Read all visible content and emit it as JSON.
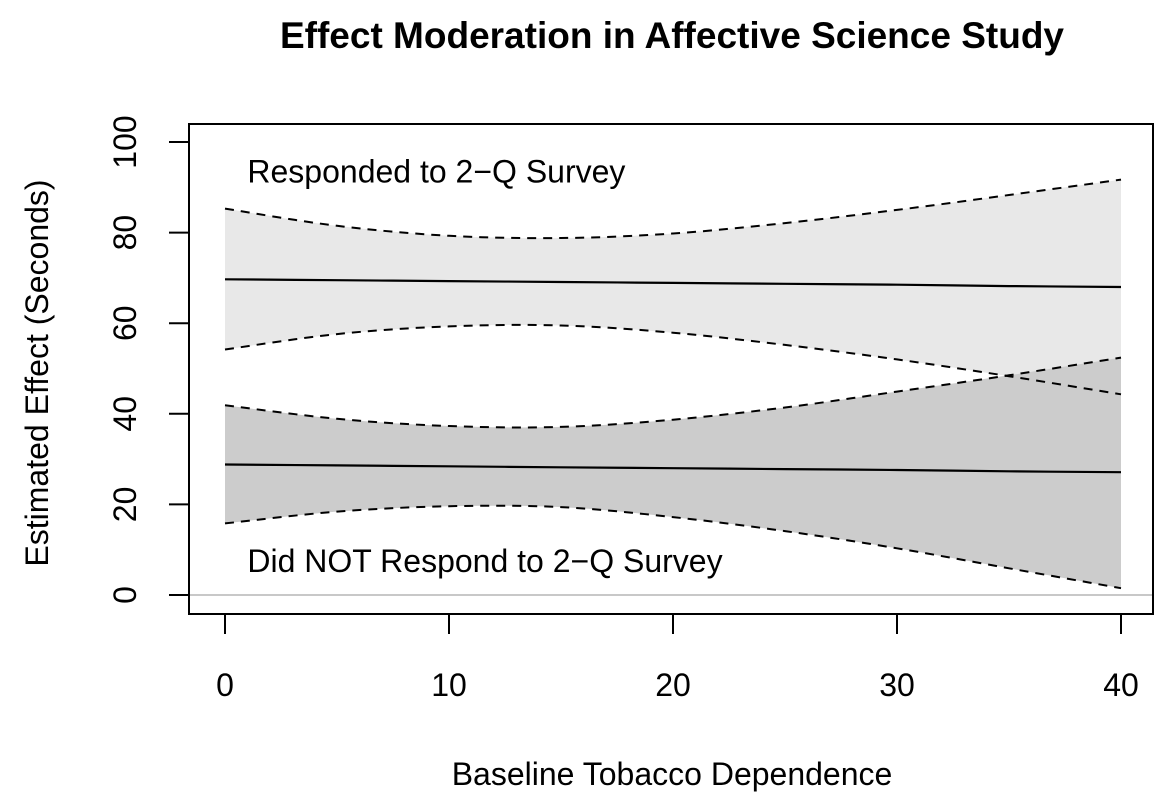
{
  "chart_data": {
    "type": "line",
    "title": "Effect Moderation in Affective Science Study",
    "xlabel": "Baseline Tobacco Dependence",
    "ylabel": "Estimated Effect (Seconds)",
    "xlim": [
      0,
      40
    ],
    "ylim": [
      0,
      100
    ],
    "x_ticks": [
      0,
      10,
      20,
      30,
      40
    ],
    "y_ticks": [
      0,
      20,
      40,
      60,
      80,
      100
    ],
    "reference_line_y": 0,
    "colors": {
      "upper_band": "#e8e8e8",
      "lower_band": "#cccccc",
      "line": "#000000",
      "zero_line": "#c8c8c8"
    },
    "x": [
      0,
      5,
      10,
      15,
      20,
      25,
      30,
      35,
      40
    ],
    "series": [
      {
        "name": "Responded to 2−Q Survey",
        "estimate": [
          69.7,
          69.5,
          69.3,
          69.1,
          68.9,
          68.7,
          68.5,
          68.2,
          68.0
        ],
        "upper": [
          85.3,
          81.5,
          79.3,
          78.8,
          79.8,
          82.1,
          85.0,
          88.3,
          91.7
        ],
        "lower": [
          54.2,
          57.6,
          59.3,
          59.5,
          57.9,
          55.2,
          52.0,
          48.3,
          44.3
        ]
      },
      {
        "name": "Did NOT Respond to 2−Q Survey",
        "estimate": [
          28.8,
          28.6,
          28.4,
          28.2,
          28.0,
          27.8,
          27.6,
          27.3,
          27.1
        ],
        "upper": [
          41.9,
          38.9,
          37.3,
          37.1,
          38.7,
          41.4,
          44.9,
          48.5,
          52.4
        ],
        "lower": [
          15.8,
          18.4,
          19.6,
          19.4,
          17.2,
          14.1,
          10.3,
          5.9,
          1.5
        ]
      }
    ],
    "annotations": [
      {
        "text": "Responded to 2−Q Survey",
        "x": 1,
        "y": 93.5
      },
      {
        "text": "Did NOT Respond to 2−Q Survey",
        "x": 1,
        "y": 7.5
      }
    ]
  }
}
